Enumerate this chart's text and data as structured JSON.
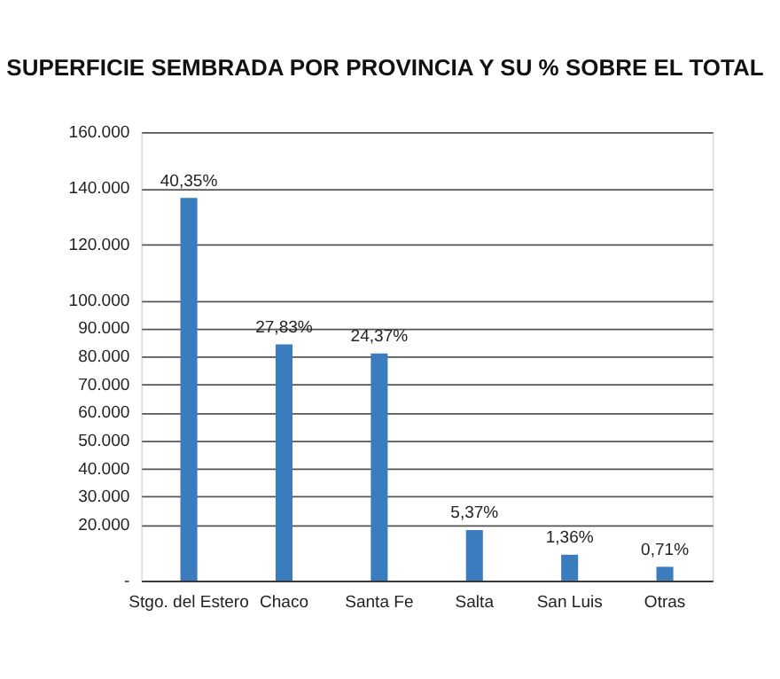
{
  "chart_data": {
    "type": "bar",
    "title": "SUPERFICIE SEMBRADA POR PROVINCIA Y SU % SOBRE EL TOTAL",
    "categories": [
      "Stgo. del Estero",
      "Chaco",
      "Santa Fe",
      "Salta",
      "San Luis",
      "Otras"
    ],
    "values": [
      136500,
      84300,
      81000,
      18000,
      9200,
      4900
    ],
    "annotations": [
      {
        "text": "40,35%",
        "x": "Stgo. del Estero",
        "y": 136500
      },
      {
        "text": "27,83%",
        "x": "Chaco",
        "y": 84300
      },
      {
        "text": "24,37%",
        "x": "Santa Fe",
        "y": 81000
      },
      {
        "text": "5,37%",
        "x": "Salta",
        "y": 18000
      },
      {
        "text": "1,36%",
        "x": "San Luis",
        "y": 9200
      },
      {
        "text": "0,71%",
        "x": "Otras",
        "y": 4900
      }
    ],
    "color": "#3a7cbd",
    "ylim": [
      0,
      160000
    ],
    "yticks": [
      {
        "value": 0,
        "label": "-"
      },
      {
        "value": 20000,
        "label": "20.000"
      },
      {
        "value": 30000,
        "label": "30.000"
      },
      {
        "value": 40000,
        "label": "40.000"
      },
      {
        "value": 50000,
        "label": "50.000"
      },
      {
        "value": 60000,
        "label": "60.000"
      },
      {
        "value": 70000,
        "label": "70.000"
      },
      {
        "value": 80000,
        "label": "80.000"
      },
      {
        "value": 90000,
        "label": "90.000"
      },
      {
        "value": 100000,
        "label": "100.000"
      },
      {
        "value": 120000,
        "label": "120.000"
      },
      {
        "value": 140000,
        "label": "140.000"
      },
      {
        "value": 160000,
        "label": "160.000"
      }
    ],
    "grid": "y"
  }
}
